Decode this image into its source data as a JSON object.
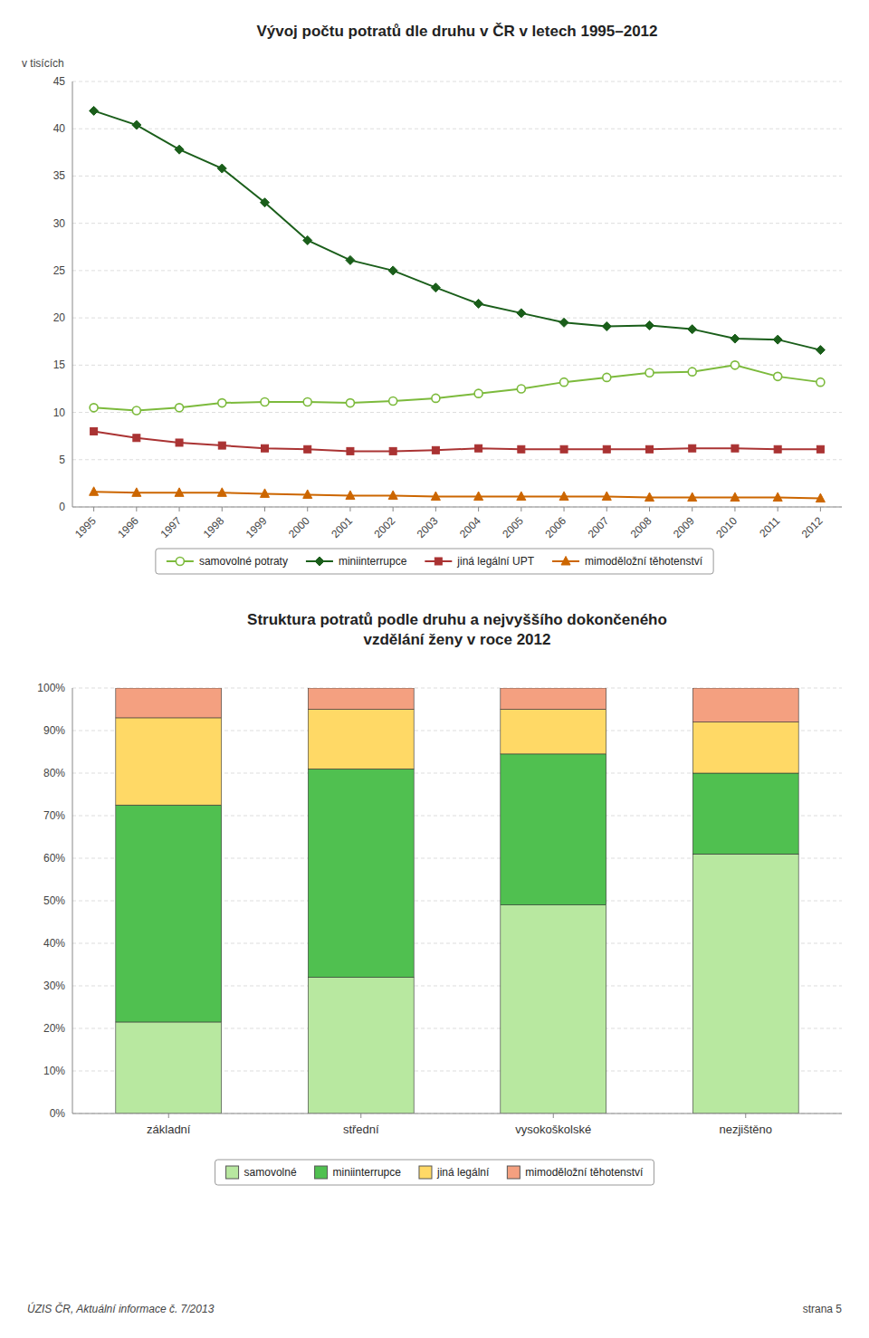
{
  "chart_data": [
    {
      "type": "line",
      "title": "Vývoj počtu potratů dle druhu v ČR v letech 1995–2012",
      "ylabel": "v tisících",
      "x": [
        1995,
        1996,
        1997,
        1998,
        1999,
        2000,
        2001,
        2002,
        2003,
        2004,
        2005,
        2006,
        2007,
        2008,
        2009,
        2010,
        2011,
        2012
      ],
      "series": [
        {
          "name": "samovolné potraty",
          "color": "#7cba3c",
          "marker": "circle",
          "values": [
            10.5,
            10.2,
            10.5,
            11.0,
            11.1,
            11.1,
            11.0,
            11.2,
            11.5,
            12.0,
            12.5,
            13.2,
            13.7,
            14.2,
            14.3,
            15.0,
            13.8,
            13.2
          ]
        },
        {
          "name": "miniinterrupce",
          "color": "#1a5e1a",
          "marker": "diamond",
          "values": [
            41.9,
            40.4,
            37.8,
            35.8,
            32.2,
            28.2,
            26.1,
            25.0,
            23.2,
            21.5,
            20.5,
            19.5,
            19.1,
            19.2,
            18.8,
            17.8,
            17.7,
            16.6
          ]
        },
        {
          "name": "jiná legální UPT",
          "color": "#aa3333",
          "marker": "square",
          "values": [
            8.0,
            7.3,
            6.8,
            6.5,
            6.2,
            6.1,
            5.9,
            5.9,
            6.0,
            6.2,
            6.1,
            6.1,
            6.1,
            6.1,
            6.2,
            6.2,
            6.1,
            6.1
          ]
        },
        {
          "name": "mimoděložní těhotenství",
          "color": "#cc6600",
          "marker": "triangle",
          "values": [
            1.6,
            1.5,
            1.5,
            1.5,
            1.4,
            1.3,
            1.2,
            1.2,
            1.1,
            1.1,
            1.1,
            1.1,
            1.1,
            1.0,
            1.0,
            1.0,
            1.0,
            0.9
          ]
        }
      ],
      "xlim": [
        1994.5,
        2012.5
      ],
      "xticks": [
        1995,
        1996,
        1997,
        1998,
        1999,
        2000,
        2001,
        2002,
        2003,
        2004,
        2005,
        2006,
        2007,
        2008,
        2009,
        2010,
        2011,
        2012
      ],
      "ylim": [
        0,
        45
      ],
      "yticks": [
        0,
        5,
        10,
        15,
        20,
        25,
        30,
        35,
        40,
        45
      ],
      "grid": true,
      "legend": "bottom"
    },
    {
      "type": "bar",
      "stacked": true,
      "title": "Struktura potratů podle druhu a nejvyššího dokončeného\nvzdělání ženy v roce 2012",
      "categories": [
        "základní",
        "střední",
        "vysokoškolské",
        "nezjištěno"
      ],
      "series": [
        {
          "name": "samovolné",
          "color": "#b8e8a0",
          "values": [
            0.215,
            0.32,
            0.49,
            0.61
          ]
        },
        {
          "name": "miniinterrupce",
          "color": "#50c050",
          "values": [
            0.51,
            0.49,
            0.355,
            0.19
          ]
        },
        {
          "name": "jiná legální",
          "color": "#ffd966",
          "values": [
            0.205,
            0.14,
            0.105,
            0.12
          ]
        },
        {
          "name": "mimoděložní těhotenství",
          "color": "#f4a080",
          "values": [
            0.07,
            0.05,
            0.05,
            0.08
          ]
        }
      ],
      "ylim": [
        0,
        1.0
      ],
      "yticks": [
        {
          "value": 0,
          "label": "0%"
        },
        {
          "value": 0.1,
          "label": "10%"
        },
        {
          "value": 0.2,
          "label": "20%"
        },
        {
          "value": 0.3,
          "label": "30%"
        },
        {
          "value": 0.4,
          "label": "40%"
        },
        {
          "value": 0.5,
          "label": "50%"
        },
        {
          "value": 0.6,
          "label": "60%"
        },
        {
          "value": 0.7,
          "label": "70%"
        },
        {
          "value": 0.8,
          "label": "80%"
        },
        {
          "value": 0.9,
          "label": "90%"
        },
        {
          "value": 1.0,
          "label": "100%"
        }
      ],
      "grid": true,
      "legend": "bottom",
      "annotations": [
        "ÚZIS ČR, Aktuální informace č. 7/2013",
        "strana 5"
      ]
    }
  ]
}
